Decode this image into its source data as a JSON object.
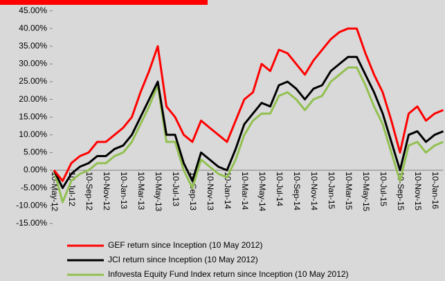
{
  "chart_data": {
    "type": "line",
    "categories": [
      "10-May-12",
      null,
      "10-Jul-12",
      null,
      "10-Sep-12",
      null,
      "10-Nov-12",
      null,
      "10-Jan-13",
      null,
      "10-Mar-13",
      null,
      "10-May-13",
      null,
      "10-Jul-13",
      null,
      "10-Sep-13",
      null,
      "10-Nov-13",
      null,
      "10-Jan-14",
      null,
      "10-Mar-14",
      null,
      "10-May-14",
      null,
      "10-Jul-14",
      null,
      "10-Sep-14",
      null,
      "10-Nov-14",
      null,
      "10-Jan-15",
      null,
      "10-Mar-15",
      null,
      "10-May-15",
      null,
      "10-Jul-15",
      null,
      "10-Sep-15",
      null,
      "10-Nov-15",
      null,
      "10-Jan-16",
      null
    ],
    "series": [
      {
        "name": "GEF return since Inception (10 May 2012)",
        "color": "#ff0000",
        "values": [
          0,
          -3,
          2,
          4,
          5,
          8,
          8,
          10,
          12,
          15,
          22,
          28,
          35,
          18,
          15,
          10,
          8,
          14,
          12,
          10,
          8,
          14,
          20,
          22,
          30,
          28,
          34,
          33,
          30,
          27,
          31,
          34,
          37,
          39,
          40,
          40,
          33,
          27,
          22,
          14,
          5,
          16,
          18,
          14,
          16,
          17
        ]
      },
      {
        "name": "JCI return since Inception (10 May 2012)",
        "color": "#000000",
        "values": [
          0,
          -5,
          -1,
          1,
          2,
          4,
          4,
          6,
          7,
          10,
          15,
          20,
          25,
          10,
          10,
          2,
          -3,
          5,
          3,
          1,
          0,
          6,
          13,
          16,
          19,
          18,
          24,
          25,
          23,
          20,
          23,
          24,
          28,
          30,
          32,
          32,
          27,
          22,
          16,
          8,
          0,
          10,
          11,
          8,
          10,
          11
        ]
      },
      {
        "name": "Infovesta Equity Fund Index return since Inception (10 May 2012)",
        "color": "#92c050",
        "values": [
          0,
          -9,
          -3,
          -1,
          0,
          2,
          2,
          4,
          5,
          8,
          13,
          18,
          24,
          8,
          8,
          0,
          -5,
          3,
          1,
          -1,
          -2,
          3,
          10,
          14,
          16,
          16,
          21,
          22,
          20,
          17,
          20,
          21,
          25,
          27,
          29,
          29,
          24,
          18,
          13,
          5,
          -3,
          7,
          8,
          5,
          7,
          8
        ]
      }
    ],
    "ylim": [
      -15,
      45
    ],
    "yticks": [
      {
        "value": 45,
        "label": "45.00%"
      },
      {
        "value": 40,
        "label": "40.00%"
      },
      {
        "value": 35,
        "label": "35.00%"
      },
      {
        "value": 30,
        "label": "30.00%"
      },
      {
        "value": 25,
        "label": "25.00%"
      },
      {
        "value": 20,
        "label": "20.00%"
      },
      {
        "value": 15,
        "label": "15.00%"
      },
      {
        "value": 10,
        "label": "10.00%"
      },
      {
        "value": 5,
        "label": "5.00%"
      },
      {
        "value": 0,
        "label": "0.00%"
      },
      {
        "value": -5,
        "label": "-5.00%"
      },
      {
        "value": -10,
        "label": "-10.00%"
      },
      {
        "value": -15,
        "label": "-15.00%"
      }
    ],
    "legend": "bottom-left"
  }
}
